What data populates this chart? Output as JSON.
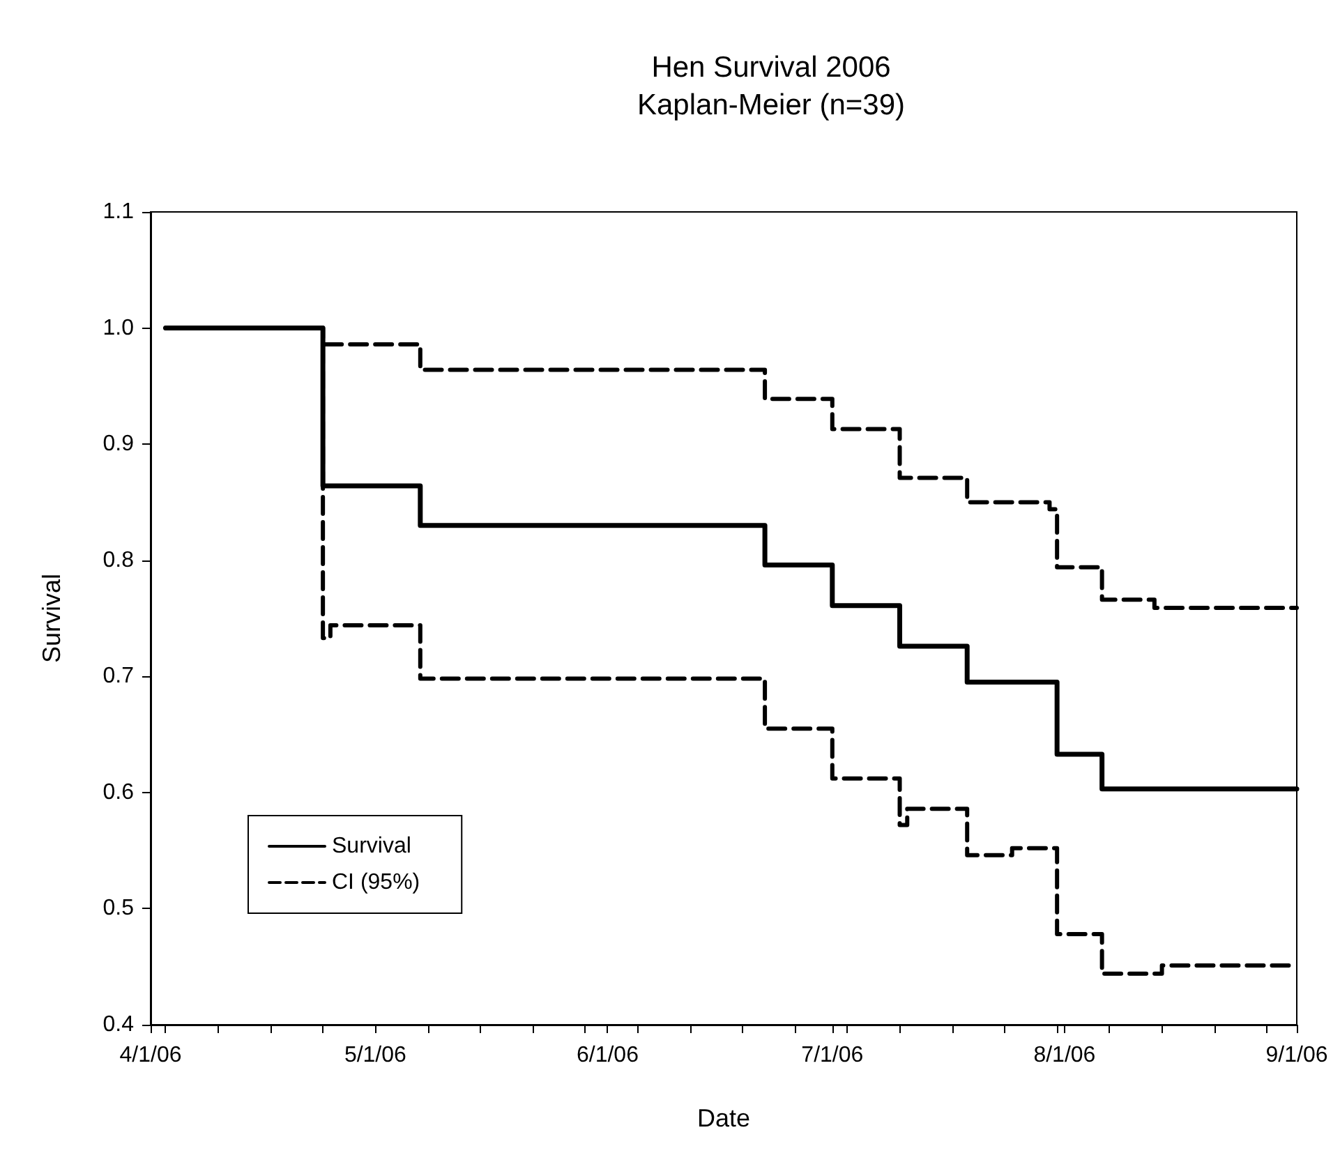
{
  "chart_data": {
    "type": "step",
    "title": "Hen Survival 2006",
    "subtitle": "Kaplan-Meier (n=39)",
    "xlabel": "Date",
    "ylabel": "Survival",
    "xlim": [
      "2006-04-01",
      "2006-09-01"
    ],
    "xticks": [
      {
        "value": "2006-04-01",
        "label": "4/1/06"
      },
      {
        "value": "2006-04-03",
        "label": null
      },
      {
        "value": "2006-04-10",
        "label": null
      },
      {
        "value": "2006-04-17",
        "label": null
      },
      {
        "value": "2006-04-24",
        "label": null
      },
      {
        "value": "2006-05-01",
        "label": "5/1/06"
      },
      {
        "value": "2006-05-08",
        "label": null
      },
      {
        "value": "2006-05-15",
        "label": null
      },
      {
        "value": "2006-05-22",
        "label": null
      },
      {
        "value": "2006-05-29",
        "label": null
      },
      {
        "value": "2006-06-01",
        "label": "6/1/06"
      },
      {
        "value": "2006-06-05",
        "label": null
      },
      {
        "value": "2006-06-12",
        "label": null
      },
      {
        "value": "2006-06-19",
        "label": null
      },
      {
        "value": "2006-06-26",
        "label": null
      },
      {
        "value": "2006-07-01",
        "label": "7/1/06"
      },
      {
        "value": "2006-07-03",
        "label": null
      },
      {
        "value": "2006-07-10",
        "label": null
      },
      {
        "value": "2006-07-17",
        "label": null
      },
      {
        "value": "2006-07-24",
        "label": null
      },
      {
        "value": "2006-07-31",
        "label": null
      },
      {
        "value": "2006-08-01",
        "label": "8/1/06"
      },
      {
        "value": "2006-08-07",
        "label": null
      },
      {
        "value": "2006-08-14",
        "label": null
      },
      {
        "value": "2006-08-21",
        "label": null
      },
      {
        "value": "2006-08-28",
        "label": null
      },
      {
        "value": "2006-09-01",
        "label": "9/1/06"
      }
    ],
    "ylim": [
      0.4,
      1.1
    ],
    "yticks": [
      0.4,
      0.5,
      0.6,
      0.7,
      0.8,
      0.9,
      {
        "value": 1,
        "label": "1.0"
      },
      1.1
    ],
    "grid": false,
    "legend": "bottom left",
    "marker": "none",
    "series": [
      {
        "name": "Survival",
        "color": "#000000",
        "line_style": "solid",
        "x": [
          "2006-04-03",
          "2006-04-24",
          "2006-05-07",
          "2006-06-22",
          "2006-07-01",
          "2006-07-10",
          "2006-07-19",
          "2006-07-31",
          "2006-08-06",
          "2006-09-01"
        ],
        "values": [
          1.0,
          0.864,
          0.83,
          0.796,
          0.761,
          0.726,
          0.695,
          0.633,
          0.603,
          0.603
        ]
      },
      {
        "name": "CI (95%)",
        "color": "#000000",
        "line_style": "dashed",
        "x": [
          "2006-04-03",
          "2006-04-24",
          "2006-05-07",
          "2006-06-22",
          "2006-07-01",
          "2006-07-10",
          "2006-07-19",
          "2006-07-30",
          "2006-07-31",
          "2006-08-06",
          "2006-08-13",
          "2006-09-01"
        ],
        "values": [
          1.0,
          0.986,
          0.964,
          0.939,
          0.913,
          0.871,
          0.85,
          0.844,
          0.794,
          0.766,
          0.759,
          0.759
        ]
      },
      {
        "color": "#000000",
        "line_style": "dashed",
        "x": [
          "2006-04-03",
          "2006-04-24",
          "2006-04-25",
          "2006-05-07",
          "2006-06-22",
          "2006-07-01",
          "2006-07-10",
          "2006-07-11",
          "2006-07-19",
          "2006-07-25",
          "2006-07-31",
          "2006-08-06",
          "2006-08-14",
          "2006-09-01"
        ],
        "values": [
          1.0,
          0.733,
          0.744,
          0.698,
          0.655,
          0.612,
          0.572,
          0.586,
          0.546,
          0.552,
          0.478,
          0.444,
          0.451,
          0.451
        ]
      }
    ]
  }
}
